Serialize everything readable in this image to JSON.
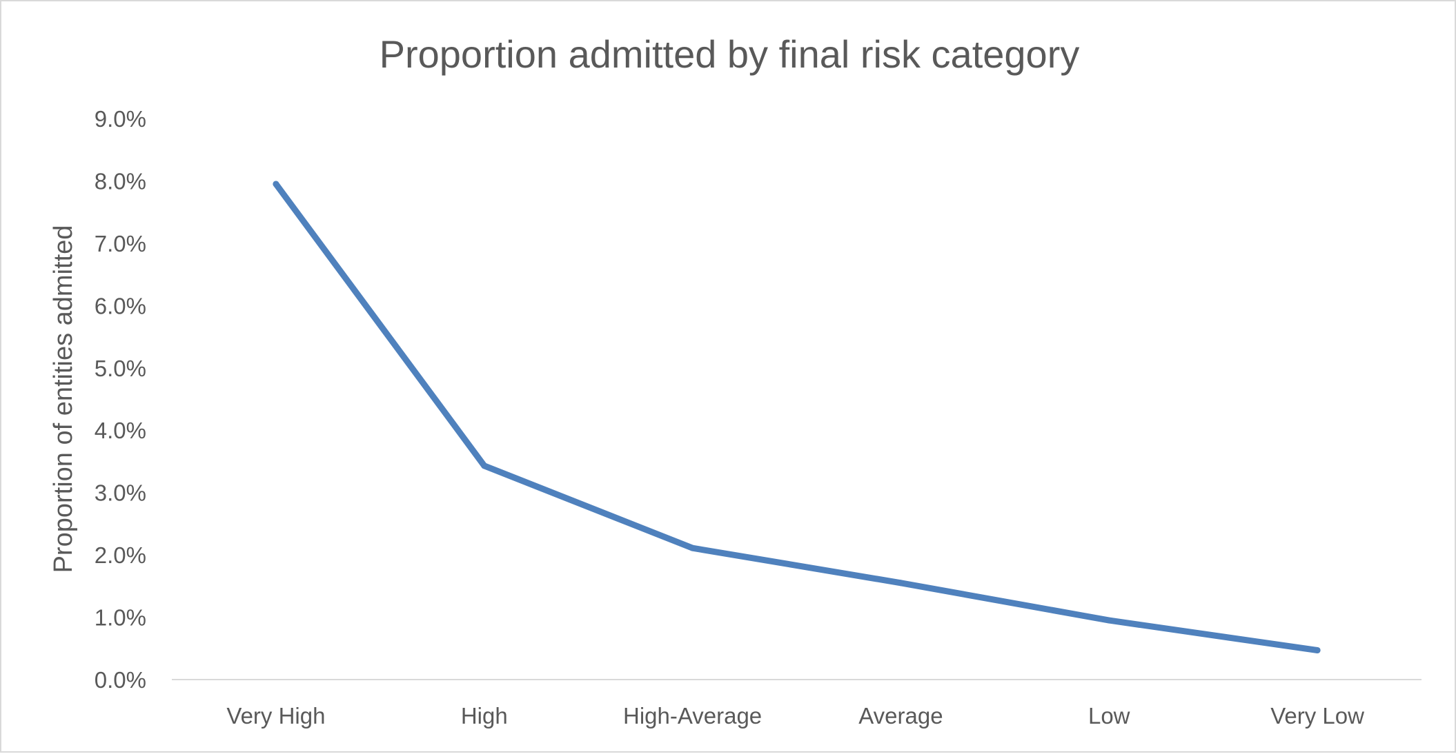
{
  "chart_data": {
    "type": "line",
    "title": "Proportion admitted by final risk category",
    "xlabel": "",
    "ylabel": "Proportion of entities admitted",
    "categories": [
      "Very High",
      "High",
      "High-Average",
      "Average",
      "Low",
      "Very Low"
    ],
    "series": [
      {
        "values": [
          0.0795,
          0.0343,
          0.0211,
          0.0155,
          0.0095,
          0.0047
        ],
        "color": "#4f81bd"
      }
    ],
    "ylim": [
      0,
      0.09
    ],
    "yticks": [
      0,
      0.01,
      0.02,
      0.03,
      0.04,
      0.05,
      0.06,
      0.07,
      0.08,
      0.09
    ],
    "ytick_labels": [
      "0.0%",
      "1.0%",
      "2.0%",
      "3.0%",
      "4.0%",
      "5.0%",
      "6.0%",
      "7.0%",
      "8.0%",
      "9.0%"
    ],
    "grid": false,
    "legend": "none"
  }
}
